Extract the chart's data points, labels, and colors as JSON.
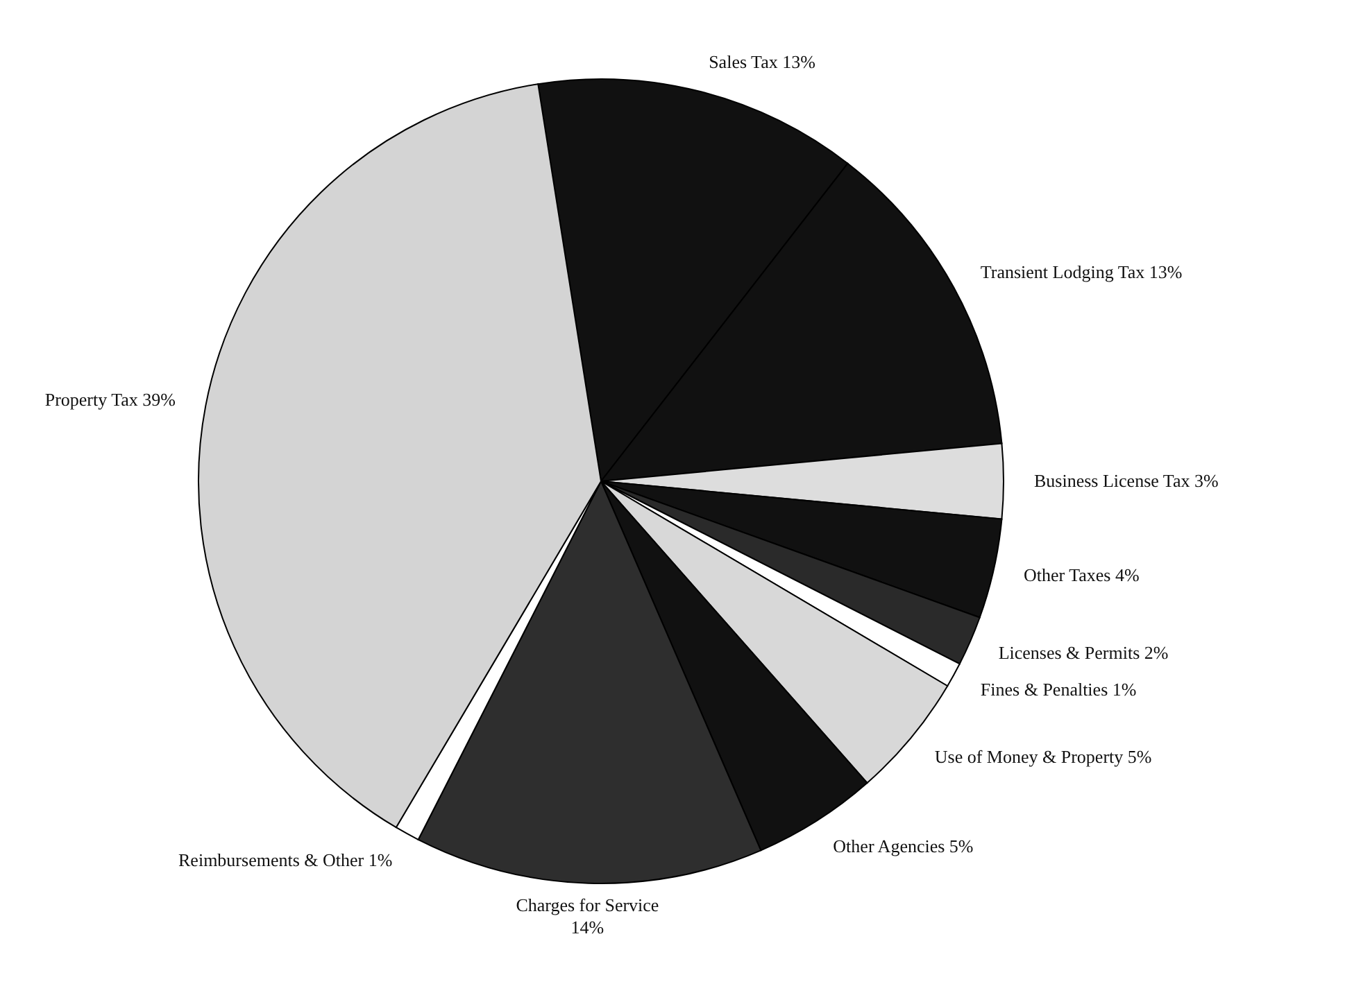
{
  "chart_data": {
    "type": "pie",
    "categories": [
      "Sales Tax",
      "Transient Lodging Tax",
      "Business License Tax",
      "Other Taxes",
      "Licenses & Permits",
      "Fines & Penalties",
      "Use of Money & Property",
      "Other Agencies",
      "Charges for Service",
      "Reimbursements & Other",
      "Property Tax"
    ],
    "values": [
      13,
      13,
      3,
      4,
      2,
      1,
      5,
      5,
      14,
      1,
      39
    ],
    "value_labels": [
      "13%",
      "13%",
      "3%",
      "4%",
      "2%",
      "1%",
      "5%",
      "5%",
      "14%",
      "1%",
      "39%"
    ],
    "colors": [
      "#111111",
      "#111111",
      "#dddddd",
      "#111111",
      "#2a2a2a",
      "#ffffff",
      "#d8d8d8",
      "#111111",
      "#2e2e2e",
      "#ffffff",
      "#d4d4d4"
    ]
  }
}
